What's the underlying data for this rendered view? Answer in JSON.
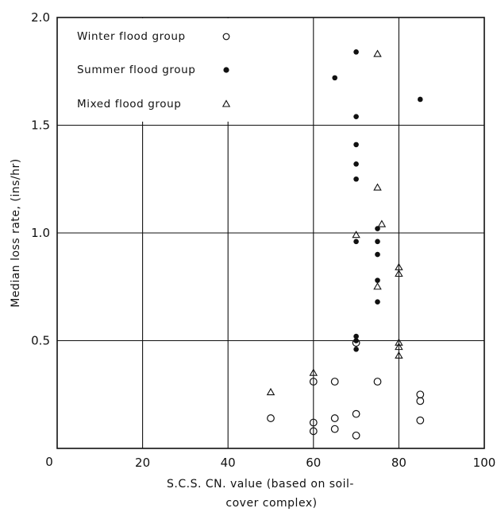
{
  "chart_data": {
    "type": "scatter",
    "title": "",
    "xlabel_line1": "S.C.S.  CN. value (based on soil-",
    "xlabel_line2": "cover  complex)",
    "ylabel": "Median loss rate, (ins/hr)",
    "xlim": [
      0,
      100
    ],
    "ylim": [
      0,
      2.0
    ],
    "x_ticks": [
      0,
      20,
      40,
      60,
      80,
      100
    ],
    "x_tick_labels": [
      "0",
      "20",
      "40",
      "60",
      "80",
      "100"
    ],
    "y_ticks": [
      0.5,
      1.0,
      1.5,
      2.0
    ],
    "y_tick_labels": [
      "0.5",
      "1.0",
      "1.5",
      "2.0"
    ],
    "grid": true,
    "legend_position": "top-left",
    "series": [
      {
        "name": "Winter flood group",
        "marker": "open-circle",
        "points": [
          [
            50,
            0.14
          ],
          [
            60,
            0.31
          ],
          [
            60,
            0.12
          ],
          [
            60,
            0.08
          ],
          [
            65,
            0.31
          ],
          [
            65,
            0.14
          ],
          [
            65,
            0.09
          ],
          [
            70,
            0.49
          ],
          [
            70,
            0.16
          ],
          [
            70,
            0.06
          ],
          [
            75,
            0.31
          ],
          [
            85,
            0.25
          ],
          [
            85,
            0.22
          ],
          [
            85,
            0.13
          ]
        ]
      },
      {
        "name": "Summer flood group",
        "marker": "filled-circle",
        "points": [
          [
            70,
            1.84
          ],
          [
            65,
            1.72
          ],
          [
            85,
            1.62
          ],
          [
            70,
            1.54
          ],
          [
            70,
            1.41
          ],
          [
            70,
            1.32
          ],
          [
            70,
            1.25
          ],
          [
            75,
            1.02
          ],
          [
            70,
            0.96
          ],
          [
            75,
            0.96
          ],
          [
            75,
            0.9
          ],
          [
            75,
            0.78
          ],
          [
            75,
            0.68
          ],
          [
            70,
            0.52
          ],
          [
            70,
            0.5
          ],
          [
            70,
            0.46
          ]
        ]
      },
      {
        "name": "Mixed flood group",
        "marker": "open-triangle",
        "points": [
          [
            75,
            1.83
          ],
          [
            75,
            1.21
          ],
          [
            76,
            1.04
          ],
          [
            70,
            0.99
          ],
          [
            80,
            0.84
          ],
          [
            80,
            0.81
          ],
          [
            75,
            0.75
          ],
          [
            80,
            0.49
          ],
          [
            80,
            0.47
          ],
          [
            80,
            0.43
          ],
          [
            60,
            0.35
          ],
          [
            50,
            0.26
          ]
        ]
      }
    ]
  }
}
